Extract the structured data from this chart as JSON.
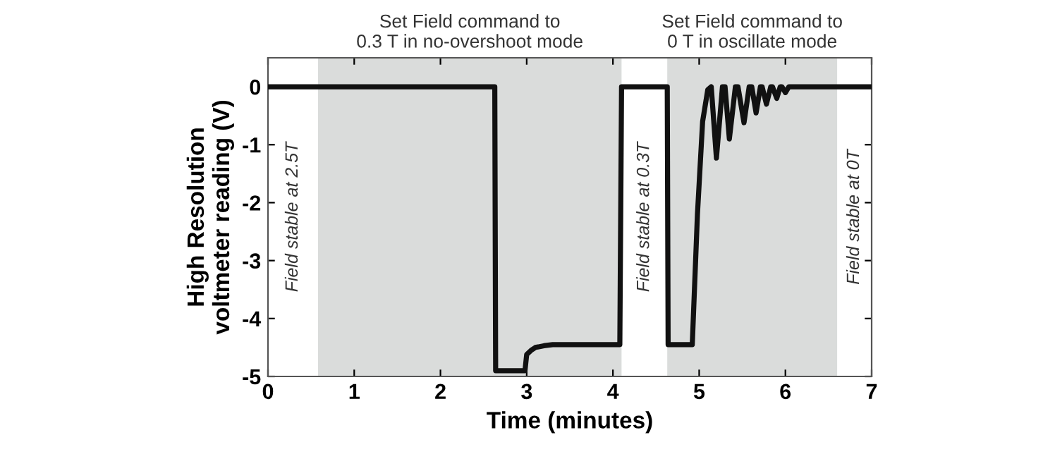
{
  "chart_data": {
    "type": "line",
    "xlabel": "Time (minutes)",
    "ylabel": "High Resolution\nvoltmeter reading (V)",
    "xlim": [
      0,
      7
    ],
    "xticks": [
      0,
      1,
      2,
      3,
      4,
      5,
      6,
      7
    ],
    "ylim": [
      -5,
      0.5
    ],
    "yticks": [
      -5,
      -4,
      -3,
      -2,
      -1,
      0
    ],
    "grid": false,
    "series": [
      {
        "color": "#111111",
        "x": [
          0,
          2.63,
          2.64,
          2.98,
          3.0,
          3.05,
          3.1,
          3.2,
          3.3,
          4.08,
          4.1,
          4.63,
          4.64,
          4.92,
          4.98,
          5.04,
          5.1,
          5.14,
          5.2,
          5.27,
          5.3,
          5.35,
          5.42,
          5.45,
          5.52,
          5.58,
          5.61,
          5.66,
          5.71,
          5.73,
          5.78,
          5.83,
          5.85,
          5.9,
          5.94,
          5.96,
          6.0,
          6.04,
          7
        ],
        "values": [
          0,
          0,
          -4.9,
          -4.9,
          -4.62,
          -4.55,
          -4.5,
          -4.47,
          -4.45,
          -4.45,
          0,
          0,
          -4.45,
          -4.45,
          -2.2,
          -0.6,
          -0.05,
          0,
          -1.23,
          0,
          0,
          -0.9,
          0,
          0,
          -0.62,
          0,
          0,
          -0.45,
          0,
          0,
          -0.3,
          0,
          0,
          -0.2,
          0,
          0,
          -0.1,
          0,
          0
        ]
      }
    ],
    "bands": [
      {
        "axis": "x",
        "from": 0.58,
        "to": 4.1,
        "label": "Set Field command to\n0.3 T in no-overshoot mode",
        "color": "#dadcdb"
      },
      {
        "axis": "x",
        "from": 4.63,
        "to": 6.6,
        "label": "Set Field command to\n0 T in oscillate mode",
        "color": "#dadcdb"
      }
    ],
    "annotations": [
      "Field stable at 2.5T",
      "Field stable at 0.3T",
      "Field stable at 0T"
    ]
  }
}
